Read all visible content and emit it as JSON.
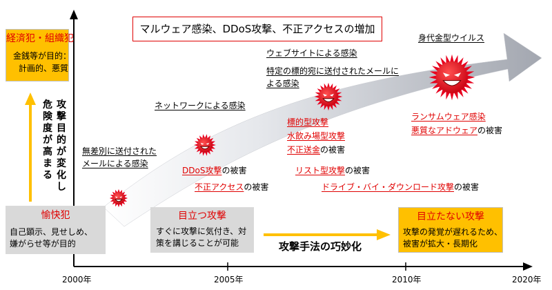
{
  "title_box": {
    "text": "マルウェア感染、DDoS攻撃、不正アクセスの増加"
  },
  "box_economic": {
    "title": "経済犯・組織犯",
    "lines": [
      "金銭等が目的：",
      "計画的、悪質"
    ]
  },
  "box_pleasure": {
    "title": "愉快犯",
    "lines": [
      "自己顕示、見せしめ、",
      "嫌がらせ等が目的"
    ]
  },
  "box_visible": {
    "title": "目立つ攻撃",
    "lines": [
      "すぐに攻撃に気付き、対",
      "策を講じることが可能"
    ]
  },
  "box_hidden": {
    "title": "目立たない攻撃",
    "lines": [
      "攻撃の発覚が遅れるため、",
      "被害が拡大・長期化"
    ]
  },
  "vertical_label": [
    "攻",
    "撃",
    "目",
    "的",
    "が",
    "変",
    "化",
    "し",
    "危",
    "険",
    "度",
    "が",
    "高",
    "ま",
    "る"
  ],
  "horizontal_label": "攻撃手法の巧妙化",
  "stages": {
    "indiscriminate_mail": [
      "無差別に送付された",
      "メールによる感染"
    ],
    "network": "ネットワークによる感染",
    "website": "ウェブサイトによる感染",
    "targeted_mail": [
      "特定の標的宛に送付されたメールに",
      "よる感染"
    ],
    "ransomware": "身代金型ウイルス"
  },
  "damages": {
    "ddos": {
      "red": "DDoS攻撃",
      "suffix": "の被害"
    },
    "unauthorized": {
      "red": "不正アクセス",
      "suffix": "の被害"
    },
    "targeted": "標的型攻撃",
    "watering_hole": "水飲み場型攻撃",
    "remittance": {
      "red": "不正送金",
      "suffix": "の被害"
    },
    "list": {
      "red": "リスト型攻撃",
      "suffix": "の被害"
    },
    "driveby": {
      "red": "ドライブ・バイ・ダウンロード攻撃",
      "suffix": "の被害"
    },
    "ransom": "ランサムウェア感染",
    "adware": {
      "red": "悪質なアドウェア",
      "suffix": "の被害"
    }
  },
  "years": [
    "2000年",
    "2005年",
    "2010年",
    "2020年"
  ],
  "colors": {
    "accent_red": "#e00000",
    "yellow": "#ffc000",
    "gray_box": "#d9d9d9",
    "virus_red": "#e8001e"
  }
}
